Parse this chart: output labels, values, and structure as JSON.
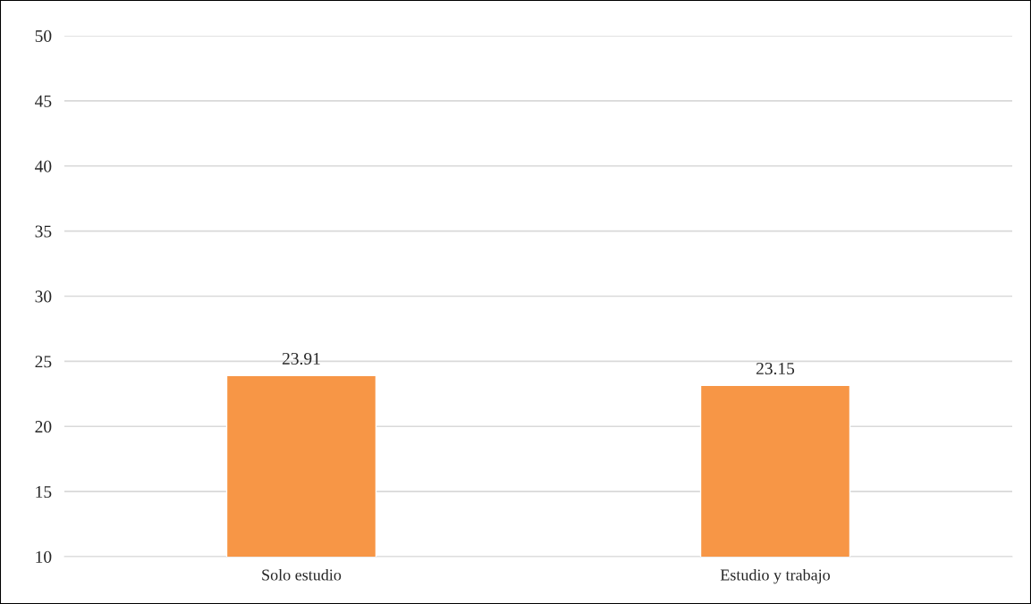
{
  "chart_data": {
    "type": "bar",
    "categories": [
      "Solo estudio",
      "Estudio y trabajo"
    ],
    "values": [
      23.91,
      23.15
    ],
    "color": "#f79646",
    "ylim": [
      10,
      50
    ],
    "yticks": [
      10,
      15,
      20,
      25,
      30,
      35,
      40,
      45,
      50
    ],
    "grid": "y",
    "data_labels": true,
    "legend": false
  }
}
